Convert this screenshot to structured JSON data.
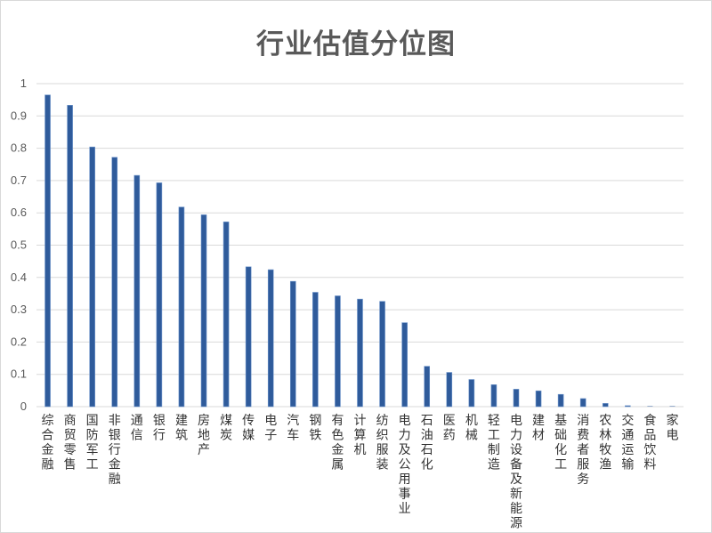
{
  "chart_data": {
    "type": "bar",
    "title": "行业估值分位图",
    "categories": [
      "综合金融",
      "商贸零售",
      "国防军工",
      "非银行金融",
      "通信",
      "银行",
      "建筑",
      "房地产",
      "煤炭",
      "传媒",
      "电子",
      "汽车",
      "钢铁",
      "有色金属",
      "计算机",
      "纺织服装",
      "电力及公用事业",
      "石油石化",
      "医药",
      "机械",
      "轻工制造",
      "电力设备及新能源",
      "建材",
      "基础化工",
      "消费者服务",
      "农林牧渔",
      "交通运输",
      "食品饮料",
      "家电"
    ],
    "values": [
      0.965,
      0.933,
      0.804,
      0.772,
      0.716,
      0.693,
      0.618,
      0.594,
      0.572,
      0.433,
      0.424,
      0.388,
      0.354,
      0.343,
      0.333,
      0.326,
      0.26,
      0.125,
      0.106,
      0.084,
      0.068,
      0.054,
      0.049,
      0.038,
      0.025,
      0.01,
      0.003,
      0.0,
      0.0
    ],
    "ylim": [
      0,
      1
    ],
    "yticks": [
      "0",
      "0.1",
      "0.2",
      "0.3",
      "0.4",
      "0.5",
      "0.6",
      "0.7",
      "0.8",
      "0.9",
      "1"
    ],
    "grid": true,
    "legend": "none",
    "bar_color": "#2f5b9b",
    "bar_edge_color": "#6f96cc",
    "grid_color": "#d9d9d9"
  }
}
